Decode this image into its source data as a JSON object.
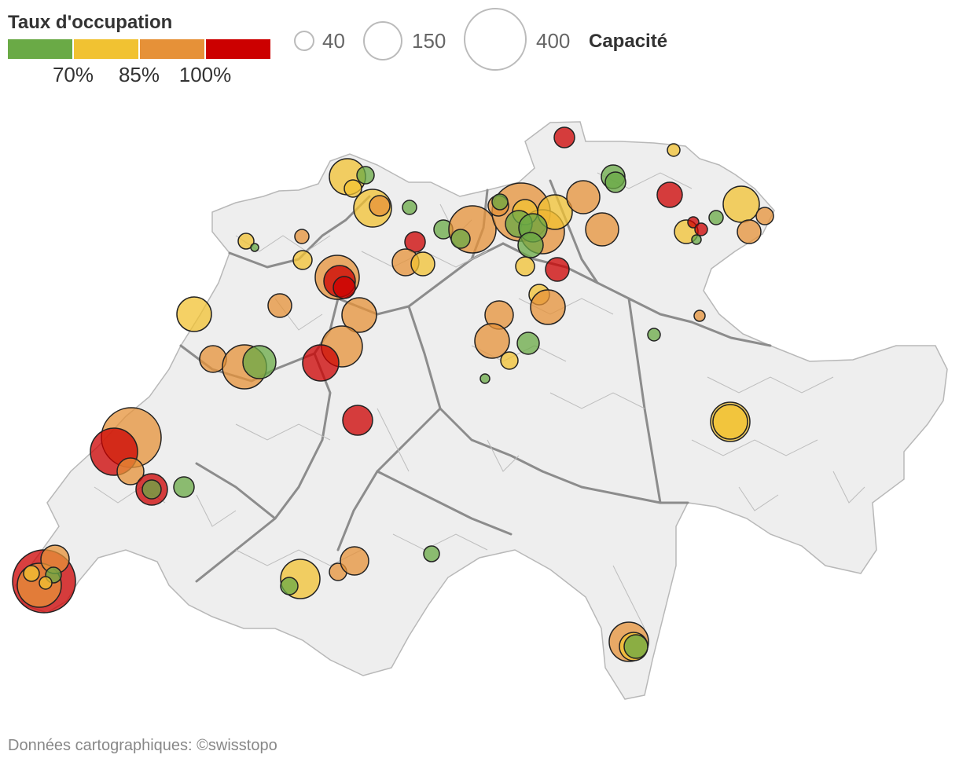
{
  "legend": {
    "color_title": "Taux d'occupation",
    "color_ticks": [
      "70%",
      "85%",
      "100%"
    ],
    "size_values": [
      "40",
      "150",
      "400"
    ],
    "size_title": "Capacité"
  },
  "source": "Données cartographiques: ©swisstopo",
  "colors": {
    "green": "#6aaa46",
    "yellow": "#f1c232",
    "orange": "#e69138",
    "red": "#cc0000",
    "country_fill": "#eeeeee",
    "border_thick": "#8c8c8c",
    "border_thin": "#b8b8b8",
    "marker_stroke": "#222222"
  },
  "color_scale": [
    "green",
    "yellow",
    "orange",
    "red"
  ],
  "marker_counts": {
    "green": 17,
    "yellow": 22,
    "orange": 35,
    "red": 14
  }
}
